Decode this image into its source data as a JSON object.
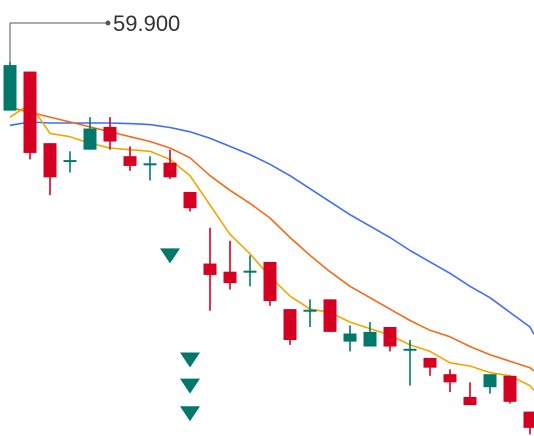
{
  "chart_data": {
    "type": "candlestick",
    "title": "",
    "peak_label": "59.900",
    "ylim": [
      48.4,
      61.8
    ],
    "colors": {
      "up": "#00796b",
      "down": "#d50021",
      "fast_ma": "#f5a500",
      "mid_ma": "#f26b16",
      "slow_ma": "#3f6ff0",
      "signal": "#00796b",
      "peak_line": "#555555"
    },
    "candles": [
      {
        "open": 58.4,
        "high": 59.9,
        "low": 58.4,
        "close": 59.8
      },
      {
        "open": 59.6,
        "high": 59.6,
        "low": 56.9,
        "close": 57.1
      },
      {
        "open": 57.4,
        "high": 57.4,
        "low": 55.8,
        "close": 56.35
      },
      {
        "open": 56.85,
        "high": 57.15,
        "low": 56.5,
        "close": 56.85
      },
      {
        "open": 57.2,
        "high": 58.2,
        "low": 57.2,
        "close": 57.85
      },
      {
        "open": 57.9,
        "high": 58.2,
        "low": 57.2,
        "close": 57.45
      },
      {
        "open": 57.0,
        "high": 57.3,
        "low": 56.55,
        "close": 56.7
      },
      {
        "open": 56.75,
        "high": 57.0,
        "low": 56.25,
        "close": 56.75
      },
      {
        "open": 56.8,
        "high": 57.2,
        "low": 56.3,
        "close": 56.35
      },
      {
        "open": 55.9,
        "high": 55.9,
        "low": 55.3,
        "close": 55.4
      },
      {
        "open": 53.7,
        "high": 54.8,
        "low": 52.25,
        "close": 53.35
      },
      {
        "open": 53.45,
        "high": 54.4,
        "low": 52.9,
        "close": 53.1
      },
      {
        "open": 53.45,
        "high": 53.95,
        "low": 53.0,
        "close": 53.45
      },
      {
        "open": 53.75,
        "high": 53.75,
        "low": 52.4,
        "close": 52.55
      },
      {
        "open": 52.3,
        "high": 52.3,
        "low": 51.2,
        "close": 51.35
      },
      {
        "open": 52.25,
        "high": 52.6,
        "low": 51.75,
        "close": 52.25
      },
      {
        "open": 52.6,
        "high": 52.6,
        "low": 51.6,
        "close": 51.6
      },
      {
        "open": 51.3,
        "high": 51.8,
        "low": 51.0,
        "close": 51.55
      },
      {
        "open": 51.15,
        "high": 51.9,
        "low": 51.15,
        "close": 51.6
      },
      {
        "open": 51.75,
        "high": 51.75,
        "low": 51.0,
        "close": 51.15
      },
      {
        "open": 51.05,
        "high": 51.35,
        "low": 49.95,
        "close": 51.05
      },
      {
        "open": 50.8,
        "high": 50.8,
        "low": 50.25,
        "close": 50.5
      },
      {
        "open": 50.3,
        "high": 50.45,
        "low": 49.75,
        "close": 50.05
      },
      {
        "open": 49.6,
        "high": 50.05,
        "low": 49.45,
        "close": 49.35
      },
      {
        "open": 49.9,
        "high": 50.25,
        "low": 49.7,
        "close": 50.3
      },
      {
        "open": 50.25,
        "high": 50.25,
        "low": 49.4,
        "close": 49.45
      },
      {
        "open": 49.15,
        "high": 49.15,
        "low": 48.45,
        "close": 48.65
      }
    ],
    "fast_ma": [
      58.2,
      58.6,
      57.7,
      57.6,
      57.4,
      57.25,
      57.2,
      57.15,
      56.9,
      56.4,
      55.5,
      54.6,
      54.0,
      53.3,
      52.7,
      52.3,
      52.2,
      51.9,
      51.7,
      51.5,
      51.2,
      51.0,
      50.65,
      50.55,
      50.35,
      50.25,
      49.95
    ],
    "mid_ma": [
      58.5,
      58.35,
      58.2,
      58.05,
      57.9,
      57.75,
      57.6,
      57.45,
      57.25,
      56.95,
      56.4,
      55.95,
      55.55,
      55.1,
      54.5,
      53.95,
      53.45,
      53.0,
      52.65,
      52.3,
      51.95,
      51.65,
      51.45,
      51.15,
      50.9,
      50.7,
      50.5
    ],
    "slow_ma": [
      57.95,
      58.05,
      58.02,
      58.02,
      58.02,
      58.02,
      58.0,
      57.97,
      57.88,
      57.75,
      57.55,
      57.3,
      57.05,
      56.75,
      56.4,
      56.0,
      55.6,
      55.2,
      54.85,
      54.5,
      54.1,
      53.75,
      53.4,
      53.0,
      52.65,
      52.2,
      51.75
    ],
    "signals": [
      {
        "index": 8,
        "value": 53.95
      },
      {
        "index": 9,
        "value": 50.75
      },
      {
        "index": 9,
        "value": 49.95
      },
      {
        "index": 9,
        "value": 49.1
      }
    ]
  }
}
